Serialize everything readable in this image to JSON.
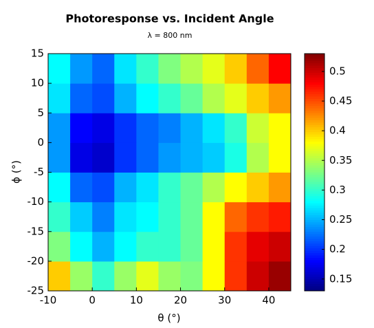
{
  "chart_data": {
    "type": "heatmap",
    "title": "Photoresponse vs. Incident Angle",
    "subtitle": "λ = 800 nm",
    "x_label": "θ (°)",
    "y_label": "ϕ (°)",
    "colormap": "jet",
    "x": [
      -7.5,
      -2.5,
      2.5,
      7.5,
      12.5,
      17.5,
      22.5,
      27.5,
      32.5,
      37.5,
      42.5
    ],
    "y": [
      -22.5,
      -17.5,
      -12.5,
      -7.5,
      -2.5,
      2.5,
      7.5,
      12.5
    ],
    "z": [
      [
        0.4,
        0.34,
        0.3,
        0.34,
        0.37,
        0.34,
        0.33,
        0.38,
        0.46,
        0.5,
        0.52
      ],
      [
        0.33,
        0.28,
        0.25,
        0.28,
        0.3,
        0.3,
        0.32,
        0.38,
        0.46,
        0.49,
        0.5
      ],
      [
        0.3,
        0.26,
        0.23,
        0.27,
        0.28,
        0.3,
        0.32,
        0.38,
        0.44,
        0.46,
        0.47
      ],
      [
        0.28,
        0.22,
        0.21,
        0.25,
        0.27,
        0.3,
        0.32,
        0.35,
        0.38,
        0.4,
        0.42
      ],
      [
        0.24,
        0.17,
        0.16,
        0.2,
        0.22,
        0.24,
        0.25,
        0.26,
        0.29,
        0.35,
        0.38
      ],
      [
        0.24,
        0.18,
        0.17,
        0.2,
        0.22,
        0.23,
        0.25,
        0.27,
        0.3,
        0.36,
        0.38
      ],
      [
        0.27,
        0.22,
        0.21,
        0.25,
        0.28,
        0.3,
        0.32,
        0.35,
        0.37,
        0.4,
        0.42
      ],
      [
        0.28,
        0.24,
        0.22,
        0.27,
        0.3,
        0.33,
        0.35,
        0.37,
        0.4,
        0.44,
        0.48
      ]
    ],
    "xlim": [
      -10,
      45
    ],
    "xticks": [
      -10,
      0,
      10,
      20,
      30,
      40
    ],
    "ylim": [
      -25,
      15
    ],
    "yticks": [
      -25,
      -20,
      -15,
      -10,
      -5,
      0,
      5,
      10,
      15
    ],
    "zlim": [
      0.13,
      0.53
    ],
    "zticks": [
      0.15,
      0.2,
      0.25,
      0.3,
      0.35,
      0.4,
      0.45,
      0.5
    ]
  }
}
